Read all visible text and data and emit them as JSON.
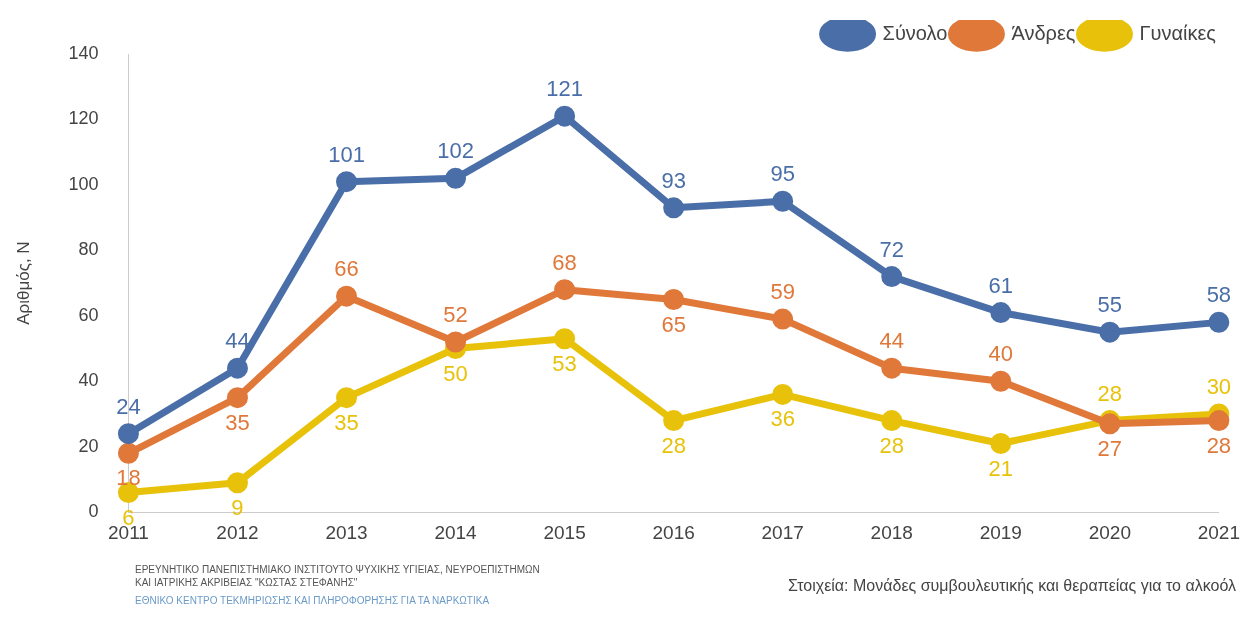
{
  "chart_data": {
    "type": "line",
    "ylabel": "Αριθμός, Ν",
    "categories": [
      "2011",
      "2012",
      "2013",
      "2014",
      "2015",
      "2016",
      "2017",
      "2018",
      "2019",
      "2020",
      "2021"
    ],
    "series": [
      {
        "name": "Σύνολο",
        "color": "#4a6ea8",
        "values": [
          24,
          44,
          101,
          102,
          121,
          93,
          95,
          72,
          61,
          55,
          58
        ]
      },
      {
        "name": "Άνδρες",
        "color": "#e0783a",
        "values": [
          18,
          35,
          66,
          52,
          68,
          65,
          59,
          44,
          40,
          27,
          28
        ]
      },
      {
        "name": "Γυναίκες",
        "color": "#e8c20a",
        "values": [
          6,
          9,
          35,
          50,
          53,
          28,
          36,
          28,
          21,
          28,
          30
        ]
      }
    ],
    "ylim": [
      0,
      140
    ],
    "yticks": [
      0,
      20,
      40,
      60,
      80,
      100,
      120,
      140
    ],
    "grid": false,
    "legend": "top right",
    "marker": "circle",
    "line_style": "solid",
    "data_labels": true,
    "annotations": [
      "ΕΡΕΥΝΗΤΙΚΟ ΠΑΝΕΠΙΣΤΗΜΙΑΚΟ ΙΝΣΤΙΤΟΥΤΟ ΨΥΧΙΚΗΣ ΥΓΙΕΙΑΣ, ΝΕΥΡΟΕΠΙΣΤΗΜΩΝ ΚΑΙ ΙΑΤΡΙΚΗΣ ΑΚΡΙΒΕΙΑΣ \"ΚΩΣΤΑΣ ΣΤΕΦΑΝΗΣ\"",
      "ΕΘΝΙΚΟ ΚΕΝΤΡΟ ΤΕΚΜΗΡΙΩΣΗΣ ΚΑΙ ΠΛΗΡΟΦΟΡΗΣΗΣ ΓΙΑ ΤΑ ΝΑΡΚΩΤΙΚΑ",
      "Στοιχεία: Μονάδες συμβουλευτικής και θεραπείας για το αλκοόλ"
    ]
  }
}
